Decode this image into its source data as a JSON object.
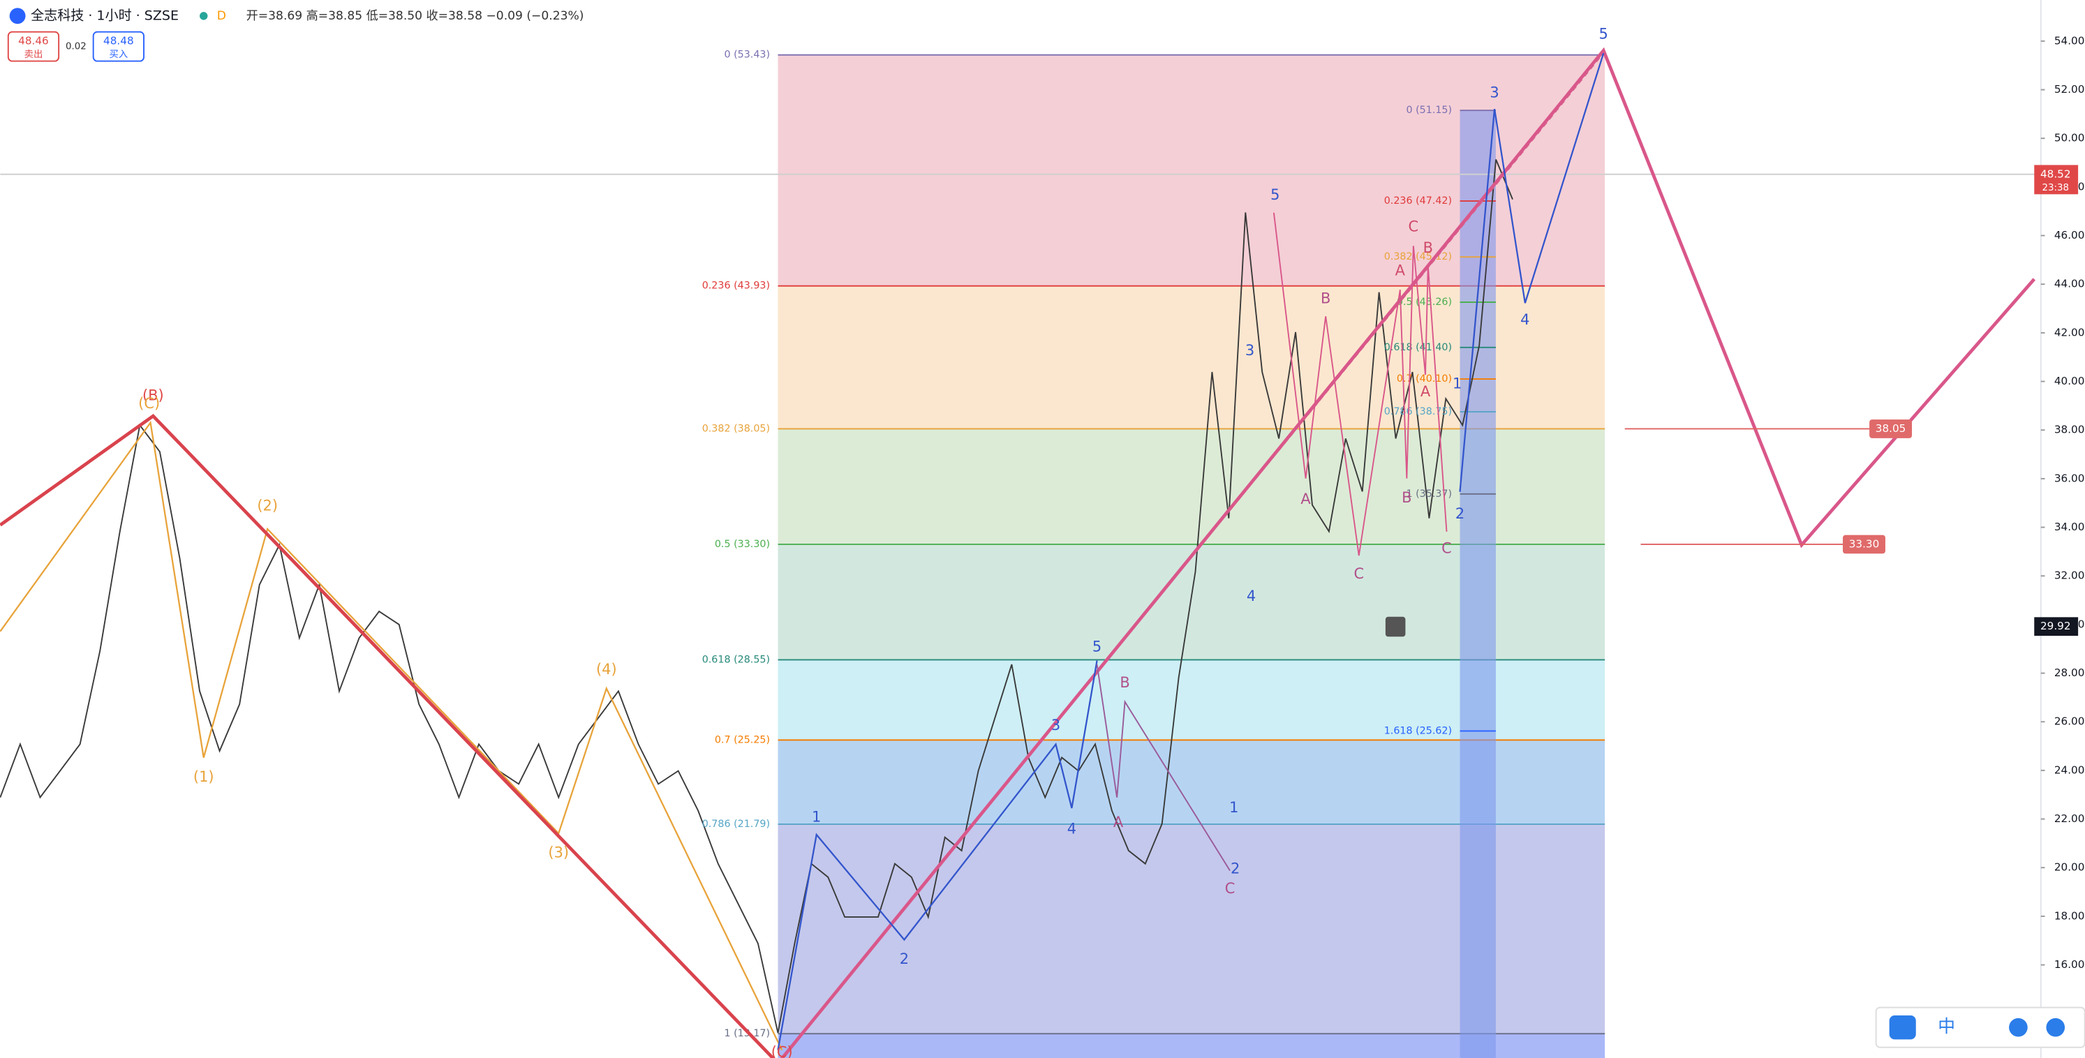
{
  "header": {
    "symbol": "全志科技 · 1小时 · SZSE",
    "badge": "D",
    "ohlc": "开=38.69 高=38.85 低=38.50 收=38.58 −0.09 (−0.23%)",
    "sell_price": "48.46",
    "sell_label": "卖出",
    "spread": "0.02",
    "buy_price": "48.48",
    "buy_label": "买入"
  },
  "chart_data": {
    "type": "line",
    "color": "#3a3a3a",
    "categories": [
      null,
      null,
      null,
      null,
      null,
      null,
      null,
      null,
      null,
      null,
      null,
      null,
      null,
      null,
      null,
      null,
      null,
      null,
      null,
      null,
      null,
      null,
      null,
      null,
      null,
      null,
      null,
      null,
      null,
      null,
      null,
      null,
      null,
      null,
      null,
      null,
      null,
      null,
      null,
      null,
      null,
      null,
      null,
      null,
      null,
      null,
      null,
      null,
      null,
      null,
      null,
      null,
      null,
      null,
      null,
      null,
      null,
      null,
      null,
      null,
      null,
      null,
      null,
      null,
      null,
      null,
      null,
      null,
      null,
      null,
      null,
      null,
      null,
      null,
      null,
      null,
      null,
      null,
      null,
      null,
      null,
      null,
      null,
      null
    ],
    "values": [
      22.89,
      25.08,
      22.89,
      23.98,
      25.08,
      28.91,
      33.83,
      38.2,
      37.11,
      32.73,
      27.26,
      24.8,
      26.72,
      31.64,
      33.28,
      29.45,
      31.64,
      27.26,
      29.45,
      30.54,
      30,
      26.72,
      25.08,
      22.89,
      25.08,
      23.98,
      23.44,
      25.08,
      22.89,
      25.08,
      26.17,
      27.26,
      25.08,
      23.44,
      23.98,
      22.34,
      20.16,
      18.52,
      16.88,
      13.2,
      16.88,
      20.16,
      19.61,
      17.97,
      17.97,
      17.97,
      20.16,
      19.61,
      17.97,
      21.25,
      20.7,
      23.98,
      26.17,
      28.36,
      24.53,
      22.89,
      24.53,
      23.98,
      25.08,
      22.34,
      20.7,
      20.16,
      21.8,
      27.81,
      32.18,
      40.39,
      34.37,
      46.95,
      40.39,
      37.65,
      42.03,
      34.92,
      33.83,
      37.65,
      35.47,
      43.67,
      37.65,
      40.39,
      34.37,
      39.29,
      38.2,
      41.48,
      49.13,
      47.49
    ],
    "ylim": [
      12.17,
      55.69
    ],
    "yticks": [
      {
        "value": 16,
        "label": "16.00"
      },
      {
        "value": 18,
        "label": "18.00"
      },
      {
        "value": 20,
        "label": "20.00"
      },
      {
        "value": 22,
        "label": "22.00"
      },
      {
        "value": 24,
        "label": "24.00"
      },
      {
        "value": 26,
        "label": "26.00"
      },
      {
        "value": 28,
        "label": "28.00"
      },
      {
        "value": 30,
        "label": "30.00"
      },
      {
        "value": 32,
        "label": "32.00"
      },
      {
        "value": 34,
        "label": "34.00"
      },
      {
        "value": 36,
        "label": "36.00"
      },
      {
        "value": 38,
        "label": "38.00"
      },
      {
        "value": 40,
        "label": "40.00"
      },
      {
        "value": 42,
        "label": "42.00"
      },
      {
        "value": 44,
        "label": "44.00"
      },
      {
        "value": 46,
        "label": "46.00"
      },
      {
        "value": 48,
        "label": "48.00"
      },
      {
        "value": 50,
        "label": "50.00"
      },
      {
        "value": 52,
        "label": "52.00"
      },
      {
        "value": 54,
        "label": "54.00"
      }
    ],
    "last_price": {
      "value": 48.52,
      "label": "48.52"
    },
    "countdown": "23:38",
    "crosshair_price": {
      "value": 29.92,
      "label": "29.92"
    },
    "fib_levels": [
      {
        "value": 53.43,
        "label": "0 (53.43)",
        "color": "#7b6fb0",
        "fill": "#f4cfd6"
      },
      {
        "value": 43.93,
        "label": "0.236 (43.93)",
        "color": "#e03a3a",
        "fill": "#fbe7cf"
      },
      {
        "value": 38.05,
        "label": "0.382 (38.05)",
        "color": "#e8a33a",
        "fill": "#dcebd6"
      },
      {
        "value": 33.3,
        "label": "0.5 (33.30)",
        "color": "#4caf50",
        "fill": "#d2e8df"
      },
      {
        "value": 28.55,
        "label": "0.618 (28.55)",
        "color": "#26897a",
        "fill": "#cdeff5"
      },
      {
        "value": 25.25,
        "label": "0.7 (25.25)",
        "color": "#f57c00",
        "fill": "#b6d4f2"
      },
      {
        "value": 21.79,
        "label": "0.786 (21.79)",
        "color": "#56a5c7",
        "fill": "#c4c8ec"
      },
      {
        "value": 13.17,
        "label": "1 (13.17)",
        "color": "#6a6f86",
        "fill": "#aab8f8"
      }
    ],
    "fib2_levels": [
      {
        "value": 51.15,
        "label": "0 (51.15)",
        "color": "#7b6fb0"
      },
      {
        "value": 47.42,
        "label": "0.236 (47.42)",
        "color": "#e03a3a"
      },
      {
        "value": 45.12,
        "label": "0.382 (45.12)",
        "color": "#e8a33a"
      },
      {
        "value": 43.26,
        "label": "0.5 (43.26)",
        "color": "#4caf50"
      },
      {
        "value": 41.4,
        "label": "0.618 (41.40)",
        "color": "#26897a"
      },
      {
        "value": 40.1,
        "label": "0.7 (40.10)",
        "color": "#f57c00"
      },
      {
        "value": 38.75,
        "label": "0.786 (38.75)",
        "color": "#56a5c7"
      },
      {
        "value": 35.37,
        "label": "1 (35.37)",
        "color": "#6a6f86"
      },
      {
        "value": 25.62,
        "label": "1.618 (25.62)",
        "color": "#2962ff"
      }
    ],
    "targets": [
      {
        "value": 38.05,
        "label": "38.05"
      },
      {
        "value": 33.3,
        "label": "33.30"
      }
    ],
    "wave_labels": [
      {
        "text": "(B)",
        "color": "#e04848"
      },
      {
        "text": "(C)",
        "color": "#e8a33a"
      },
      {
        "text": "(1)",
        "color": "#e8a33a"
      },
      {
        "text": "(2)",
        "color": "#e8a33a"
      },
      {
        "text": "(3)",
        "color": "#e8a33a"
      },
      {
        "text": "(4)",
        "color": "#e8a33a"
      },
      {
        "text": "(C)",
        "color": "#e04848"
      },
      {
        "text": "1",
        "color": "#3355cc"
      },
      {
        "text": "2",
        "color": "#3355cc"
      },
      {
        "text": "3",
        "color": "#3355cc"
      },
      {
        "text": "4",
        "color": "#3355cc"
      },
      {
        "text": "5",
        "color": "#3355cc"
      },
      {
        "text": "1",
        "color": "#3355cc"
      },
      {
        "text": "2",
        "color": "#3355cc"
      },
      {
        "text": "3",
        "color": "#3355cc"
      },
      {
        "text": "4",
        "color": "#3355cc"
      },
      {
        "text": "5",
        "color": "#3355cc"
      },
      {
        "text": "1",
        "color": "#3355cc"
      },
      {
        "text": "2",
        "color": "#3355cc"
      },
      {
        "text": "3",
        "color": "#3355cc"
      },
      {
        "text": "4",
        "color": "#3355cc"
      },
      {
        "text": "5",
        "color": "#3355cc"
      },
      {
        "text": "A",
        "color": "#b0508a"
      },
      {
        "text": "B",
        "color": "#b0508a"
      },
      {
        "text": "C",
        "color": "#b0508a"
      },
      {
        "text": "A",
        "color": "#b0508a"
      },
      {
        "text": "B",
        "color": "#b0508a"
      },
      {
        "text": "C",
        "color": "#b0508a"
      },
      {
        "text": "A",
        "color": "#d04a6a"
      },
      {
        "text": "B",
        "color": "#b0508a"
      },
      {
        "text": "C",
        "color": "#d04a6a"
      },
      {
        "text": "A",
        "color": "#d04a6a"
      },
      {
        "text": "B",
        "color": "#d04a6a"
      },
      {
        "text": "C",
        "color": "#b0508a"
      }
    ],
    "toolbar": "中"
  }
}
